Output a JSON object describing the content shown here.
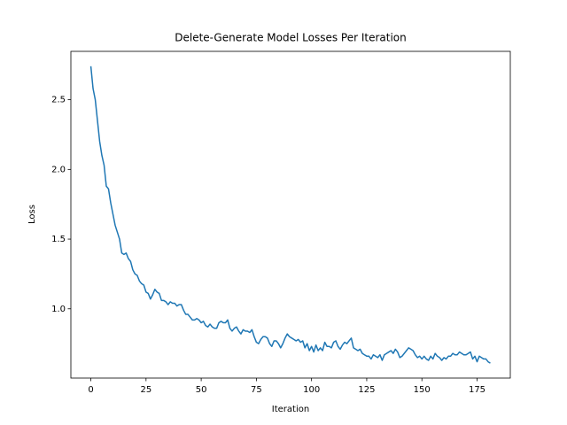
{
  "chart_data": {
    "type": "line",
    "title": "Delete-Generate Model Losses Per Iteration",
    "x_label": "Iteration",
    "y_label": "Loss",
    "x": [
      0,
      1,
      2,
      3,
      4,
      5,
      6,
      7,
      8,
      9,
      10,
      11,
      12,
      13,
      14,
      15,
      16,
      17,
      18,
      19,
      20,
      21,
      22,
      23,
      24,
      25,
      26,
      27,
      28,
      29,
      30,
      31,
      32,
      33,
      34,
      35,
      36,
      37,
      38,
      39,
      40,
      41,
      42,
      43,
      44,
      45,
      46,
      47,
      48,
      49,
      50,
      51,
      52,
      53,
      54,
      55,
      56,
      57,
      58,
      59,
      60,
      61,
      62,
      63,
      64,
      65,
      66,
      67,
      68,
      69,
      70,
      71,
      72,
      73,
      74,
      75,
      76,
      77,
      78,
      79,
      80,
      81,
      82,
      83,
      84,
      85,
      86,
      87,
      88,
      89,
      90,
      91,
      92,
      93,
      94,
      95,
      96,
      97,
      98,
      99,
      100,
      101,
      102,
      103,
      104,
      105,
      106,
      107,
      108,
      109,
      110,
      111,
      112,
      113,
      114,
      115,
      116,
      117,
      118,
      119,
      120,
      121,
      122,
      123,
      124,
      125,
      126,
      127,
      128,
      129,
      130,
      131,
      132,
      133,
      134,
      135,
      136,
      137,
      138,
      139,
      140,
      141,
      142,
      143,
      144,
      145,
      146,
      147,
      148,
      149,
      150,
      151,
      152,
      153,
      154,
      155,
      156,
      157,
      158,
      159,
      160,
      161,
      162,
      163,
      164,
      165,
      166,
      167,
      168,
      169,
      170,
      171,
      172,
      173,
      174,
      175,
      176,
      177,
      178,
      179,
      180,
      181
    ],
    "series": [
      {
        "name": "Loss",
        "color": "#1f77b4",
        "values": [
          2.74,
          2.58,
          2.5,
          2.35,
          2.2,
          2.1,
          2.03,
          1.88,
          1.86,
          1.76,
          1.68,
          1.6,
          1.55,
          1.5,
          1.4,
          1.39,
          1.4,
          1.36,
          1.34,
          1.28,
          1.25,
          1.24,
          1.2,
          1.18,
          1.17,
          1.12,
          1.11,
          1.07,
          1.1,
          1.14,
          1.12,
          1.11,
          1.06,
          1.06,
          1.05,
          1.03,
          1.05,
          1.04,
          1.04,
          1.02,
          1.03,
          1.03,
          0.99,
          0.96,
          0.96,
          0.94,
          0.92,
          0.92,
          0.93,
          0.92,
          0.9,
          0.91,
          0.88,
          0.87,
          0.89,
          0.87,
          0.86,
          0.86,
          0.9,
          0.91,
          0.9,
          0.9,
          0.92,
          0.86,
          0.84,
          0.86,
          0.87,
          0.84,
          0.82,
          0.85,
          0.84,
          0.84,
          0.83,
          0.85,
          0.8,
          0.76,
          0.75,
          0.78,
          0.8,
          0.8,
          0.79,
          0.75,
          0.73,
          0.77,
          0.77,
          0.75,
          0.72,
          0.75,
          0.79,
          0.82,
          0.8,
          0.79,
          0.78,
          0.77,
          0.78,
          0.76,
          0.77,
          0.72,
          0.75,
          0.7,
          0.73,
          0.69,
          0.74,
          0.7,
          0.72,
          0.7,
          0.76,
          0.73,
          0.73,
          0.72,
          0.76,
          0.77,
          0.73,
          0.71,
          0.74,
          0.76,
          0.75,
          0.77,
          0.79,
          0.72,
          0.71,
          0.7,
          0.71,
          0.68,
          0.67,
          0.66,
          0.66,
          0.64,
          0.67,
          0.66,
          0.65,
          0.67,
          0.63,
          0.67,
          0.68,
          0.69,
          0.7,
          0.68,
          0.71,
          0.69,
          0.65,
          0.66,
          0.68,
          0.7,
          0.72,
          0.71,
          0.7,
          0.67,
          0.65,
          0.66,
          0.64,
          0.66,
          0.64,
          0.63,
          0.66,
          0.64,
          0.68,
          0.66,
          0.65,
          0.63,
          0.65,
          0.64,
          0.66,
          0.66,
          0.68,
          0.67,
          0.67,
          0.69,
          0.68,
          0.67,
          0.67,
          0.68,
          0.69,
          0.64,
          0.66,
          0.62,
          0.66,
          0.65,
          0.64,
          0.64,
          0.62,
          0.61
        ]
      }
    ],
    "xlim": [
      -9.05,
      190.05
    ],
    "ylim": [
      0.503,
      2.847
    ],
    "xticks": [
      0,
      25,
      50,
      75,
      100,
      125,
      150,
      175
    ],
    "yticks": [
      {
        "value": 1,
        "label": "1.0"
      },
      1.5,
      {
        "value": 2,
        "label": "2.0"
      },
      2.5
    ],
    "grid": false
  }
}
